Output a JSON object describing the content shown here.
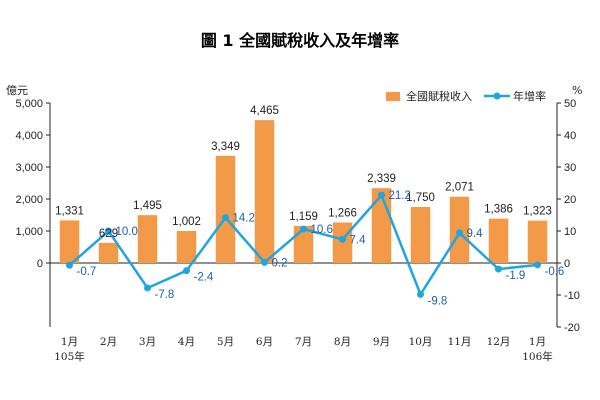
{
  "chart_data": {
    "type": "bar+line",
    "title": "圖 1 全國賦稅收入及年增率",
    "left_axis": {
      "unit": "億元",
      "min": -2000,
      "max": 5000,
      "ticks": [
        0,
        1000,
        2000,
        3000,
        4000,
        5000
      ],
      "tick_labels": [
        "0",
        "1,000",
        "2,000",
        "3,000",
        "4,000",
        "5,000"
      ]
    },
    "right_axis": {
      "unit": "%",
      "min": -20,
      "max": 50,
      "ticks": [
        -20,
        -10,
        0,
        10,
        20,
        30,
        40,
        50
      ],
      "tick_labels": [
        "-20",
        "-10",
        "0",
        "10",
        "20",
        "30",
        "40",
        "50"
      ]
    },
    "categories": [
      "1月",
      "2月",
      "3月",
      "4月",
      "5月",
      "6月",
      "7月",
      "8月",
      "9月",
      "10月",
      "11月",
      "12月",
      "1月"
    ],
    "category_sublabels": [
      "105年",
      "",
      "",
      "",
      "",
      "",
      "",
      "",
      "",
      "",
      "",
      "",
      "106年"
    ],
    "series": [
      {
        "name": "全國賦稅收入",
        "type": "bar",
        "axis": "left",
        "color": "#f39a48",
        "values": [
          1331,
          629,
          1495,
          1002,
          3349,
          4465,
          1159,
          1266,
          2339,
          1750,
          2071,
          1386,
          1323
        ],
        "labels": [
          "1,331",
          "629",
          "1,495",
          "1,002",
          "3,349",
          "4,465",
          "1,159",
          "1,266",
          "2,339",
          "1,750",
          "2,071",
          "1,386",
          "1,323"
        ]
      },
      {
        "name": "年增率",
        "type": "line",
        "axis": "right",
        "color": "#1fa5e0",
        "label_color": "#1f5fae",
        "values": [
          -0.7,
          10.0,
          -7.8,
          -2.4,
          14.2,
          0.2,
          10.6,
          7.4,
          21.2,
          -9.8,
          9.4,
          -1.9,
          -0.6
        ],
        "labels": [
          "-0.7",
          "10.0",
          "-7.8",
          "-2.4",
          "14.2",
          "0.2",
          "10.6",
          "7.4",
          "21.2",
          "-9.8",
          "9.4",
          "-1.9",
          "-0.6"
        ]
      }
    ],
    "legend": {
      "position": "top-right"
    },
    "grid": false
  }
}
